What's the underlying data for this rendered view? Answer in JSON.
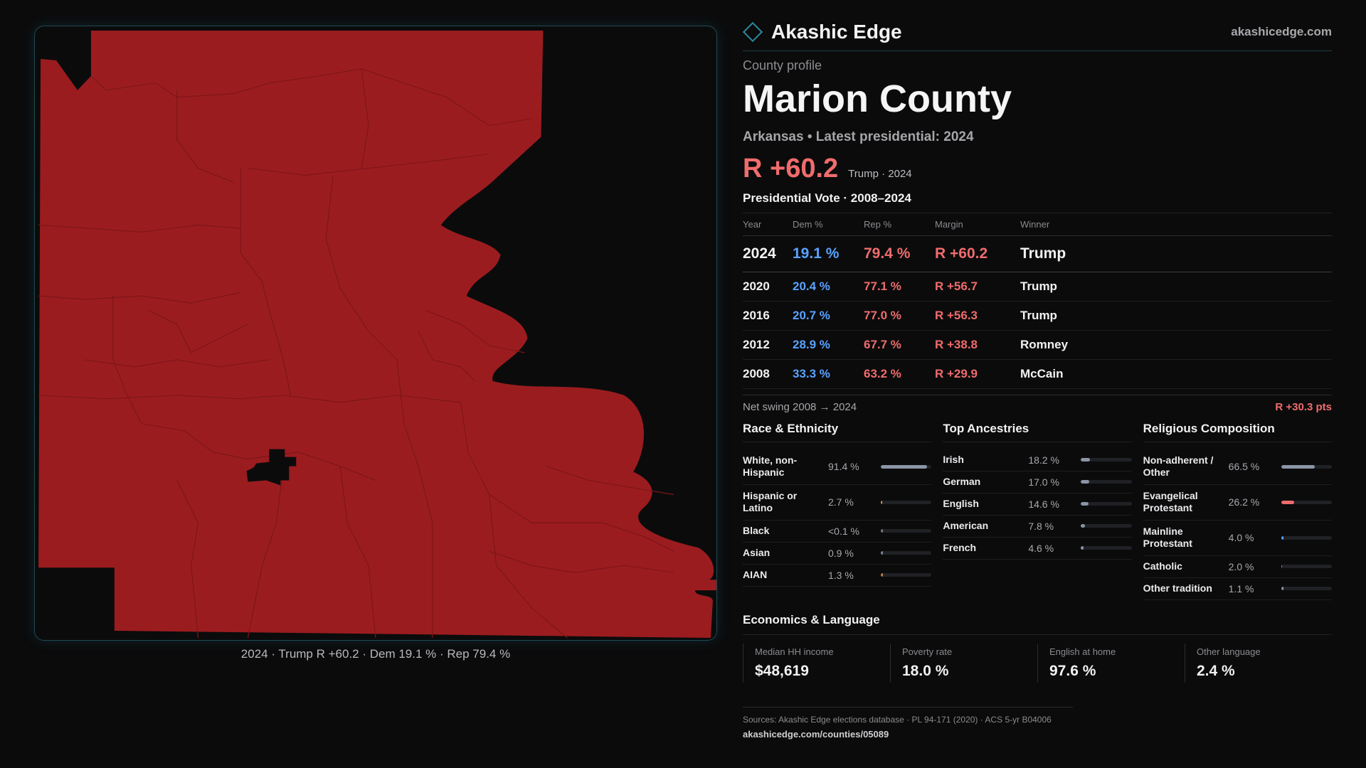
{
  "brand": {
    "name": "Akashic Edge",
    "site": "akashicedge.com"
  },
  "profile": {
    "kicker": "County profile",
    "county": "Marion County",
    "subline": "Arkansas • Latest presidential: 2024",
    "headline_margin": "R +60.2",
    "headline_note": "Trump · 2024"
  },
  "colors": {
    "rep": "#f06c6c",
    "dem": "#5aa2ff",
    "map_fill": "#9b1c1f",
    "accent": "#2a8aa0"
  },
  "map": {
    "caption": "2024 · Trump R +60.2 · Dem 19.1 % · Rep 79.4 %"
  },
  "votes": {
    "title": "Presidential Vote · 2008–2024",
    "headers": [
      "Year",
      "Dem %",
      "Rep %",
      "Margin",
      "Winner"
    ],
    "rows": [
      {
        "year": "2024",
        "dem": "19.1 %",
        "rep": "79.4 %",
        "margin": "R +60.2",
        "winner": "Trump"
      },
      {
        "year": "2020",
        "dem": "20.4 %",
        "rep": "77.1 %",
        "margin": "R +56.7",
        "winner": "Trump"
      },
      {
        "year": "2016",
        "dem": "20.7 %",
        "rep": "77.0 %",
        "margin": "R +56.3",
        "winner": "Trump"
      },
      {
        "year": "2012",
        "dem": "28.9 %",
        "rep": "67.7 %",
        "margin": "R +38.8",
        "winner": "Romney"
      },
      {
        "year": "2008",
        "dem": "33.3 %",
        "rep": "63.2 %",
        "margin": "R +29.9",
        "winner": "McCain"
      }
    ],
    "swing_label": "Net swing 2008 → 2024",
    "swing_value": "R +30.3 pts"
  },
  "race": {
    "title": "Race & Ethnicity",
    "rows": [
      {
        "label": "White, non-Hispanic",
        "value": "91.4 %",
        "pct": 91.4,
        "color": "#8a95a6"
      },
      {
        "label": "Hispanic or Latino",
        "value": "2.7 %",
        "pct": 2.7,
        "color": "#e0a030"
      },
      {
        "label": "Black",
        "value": "<0.1 %",
        "pct": 0.1,
        "color": "#7a7a80"
      },
      {
        "label": "Asian",
        "value": "0.9 %",
        "pct": 0.9,
        "color": "#7a8aa0"
      },
      {
        "label": "AIAN",
        "value": "1.3 %",
        "pct": 1.3,
        "color": "#c08040"
      }
    ]
  },
  "ancestry": {
    "title": "Top Ancestries",
    "rows": [
      {
        "label": "Irish",
        "value": "18.2 %",
        "pct": 18.2,
        "color": "#8a95a6"
      },
      {
        "label": "German",
        "value": "17.0 %",
        "pct": 17.0,
        "color": "#8a95a6"
      },
      {
        "label": "English",
        "value": "14.6 %",
        "pct": 14.6,
        "color": "#8a95a6"
      },
      {
        "label": "American",
        "value": "7.8 %",
        "pct": 7.8,
        "color": "#8a95a6"
      },
      {
        "label": "French",
        "value": "4.6 %",
        "pct": 4.6,
        "color": "#8a95a6"
      }
    ]
  },
  "religion": {
    "title": "Religious Composition",
    "rows": [
      {
        "label": "Non-adherent / Other",
        "value": "66.5 %",
        "pct": 66.5,
        "color": "#8a95a6"
      },
      {
        "label": "Evangelical Protestant",
        "value": "26.2 %",
        "pct": 26.2,
        "color": "#f06c6c"
      },
      {
        "label": "Mainline Protestant",
        "value": "4.0 %",
        "pct": 4.0,
        "color": "#5aa2ff"
      },
      {
        "label": "Catholic",
        "value": "2.0 %",
        "pct": 2.0,
        "color": "#c0a040"
      },
      {
        "label": "Other tradition",
        "value": "1.1 %",
        "pct": 1.1,
        "color": "#8a95a6"
      }
    ]
  },
  "economics": {
    "title": "Economics & Language",
    "cells": [
      {
        "label": "Median HH income",
        "value": "$48,619"
      },
      {
        "label": "Poverty rate",
        "value": "18.0 %"
      },
      {
        "label": "English at home",
        "value": "97.6 %"
      },
      {
        "label": "Other language",
        "value": "2.4 %"
      }
    ]
  },
  "sources": {
    "line": "Sources: Akashic Edge elections database · PL 94-171 (2020) · ACS 5-yr B04006",
    "url": "akashicedge.com/counties/05089"
  }
}
